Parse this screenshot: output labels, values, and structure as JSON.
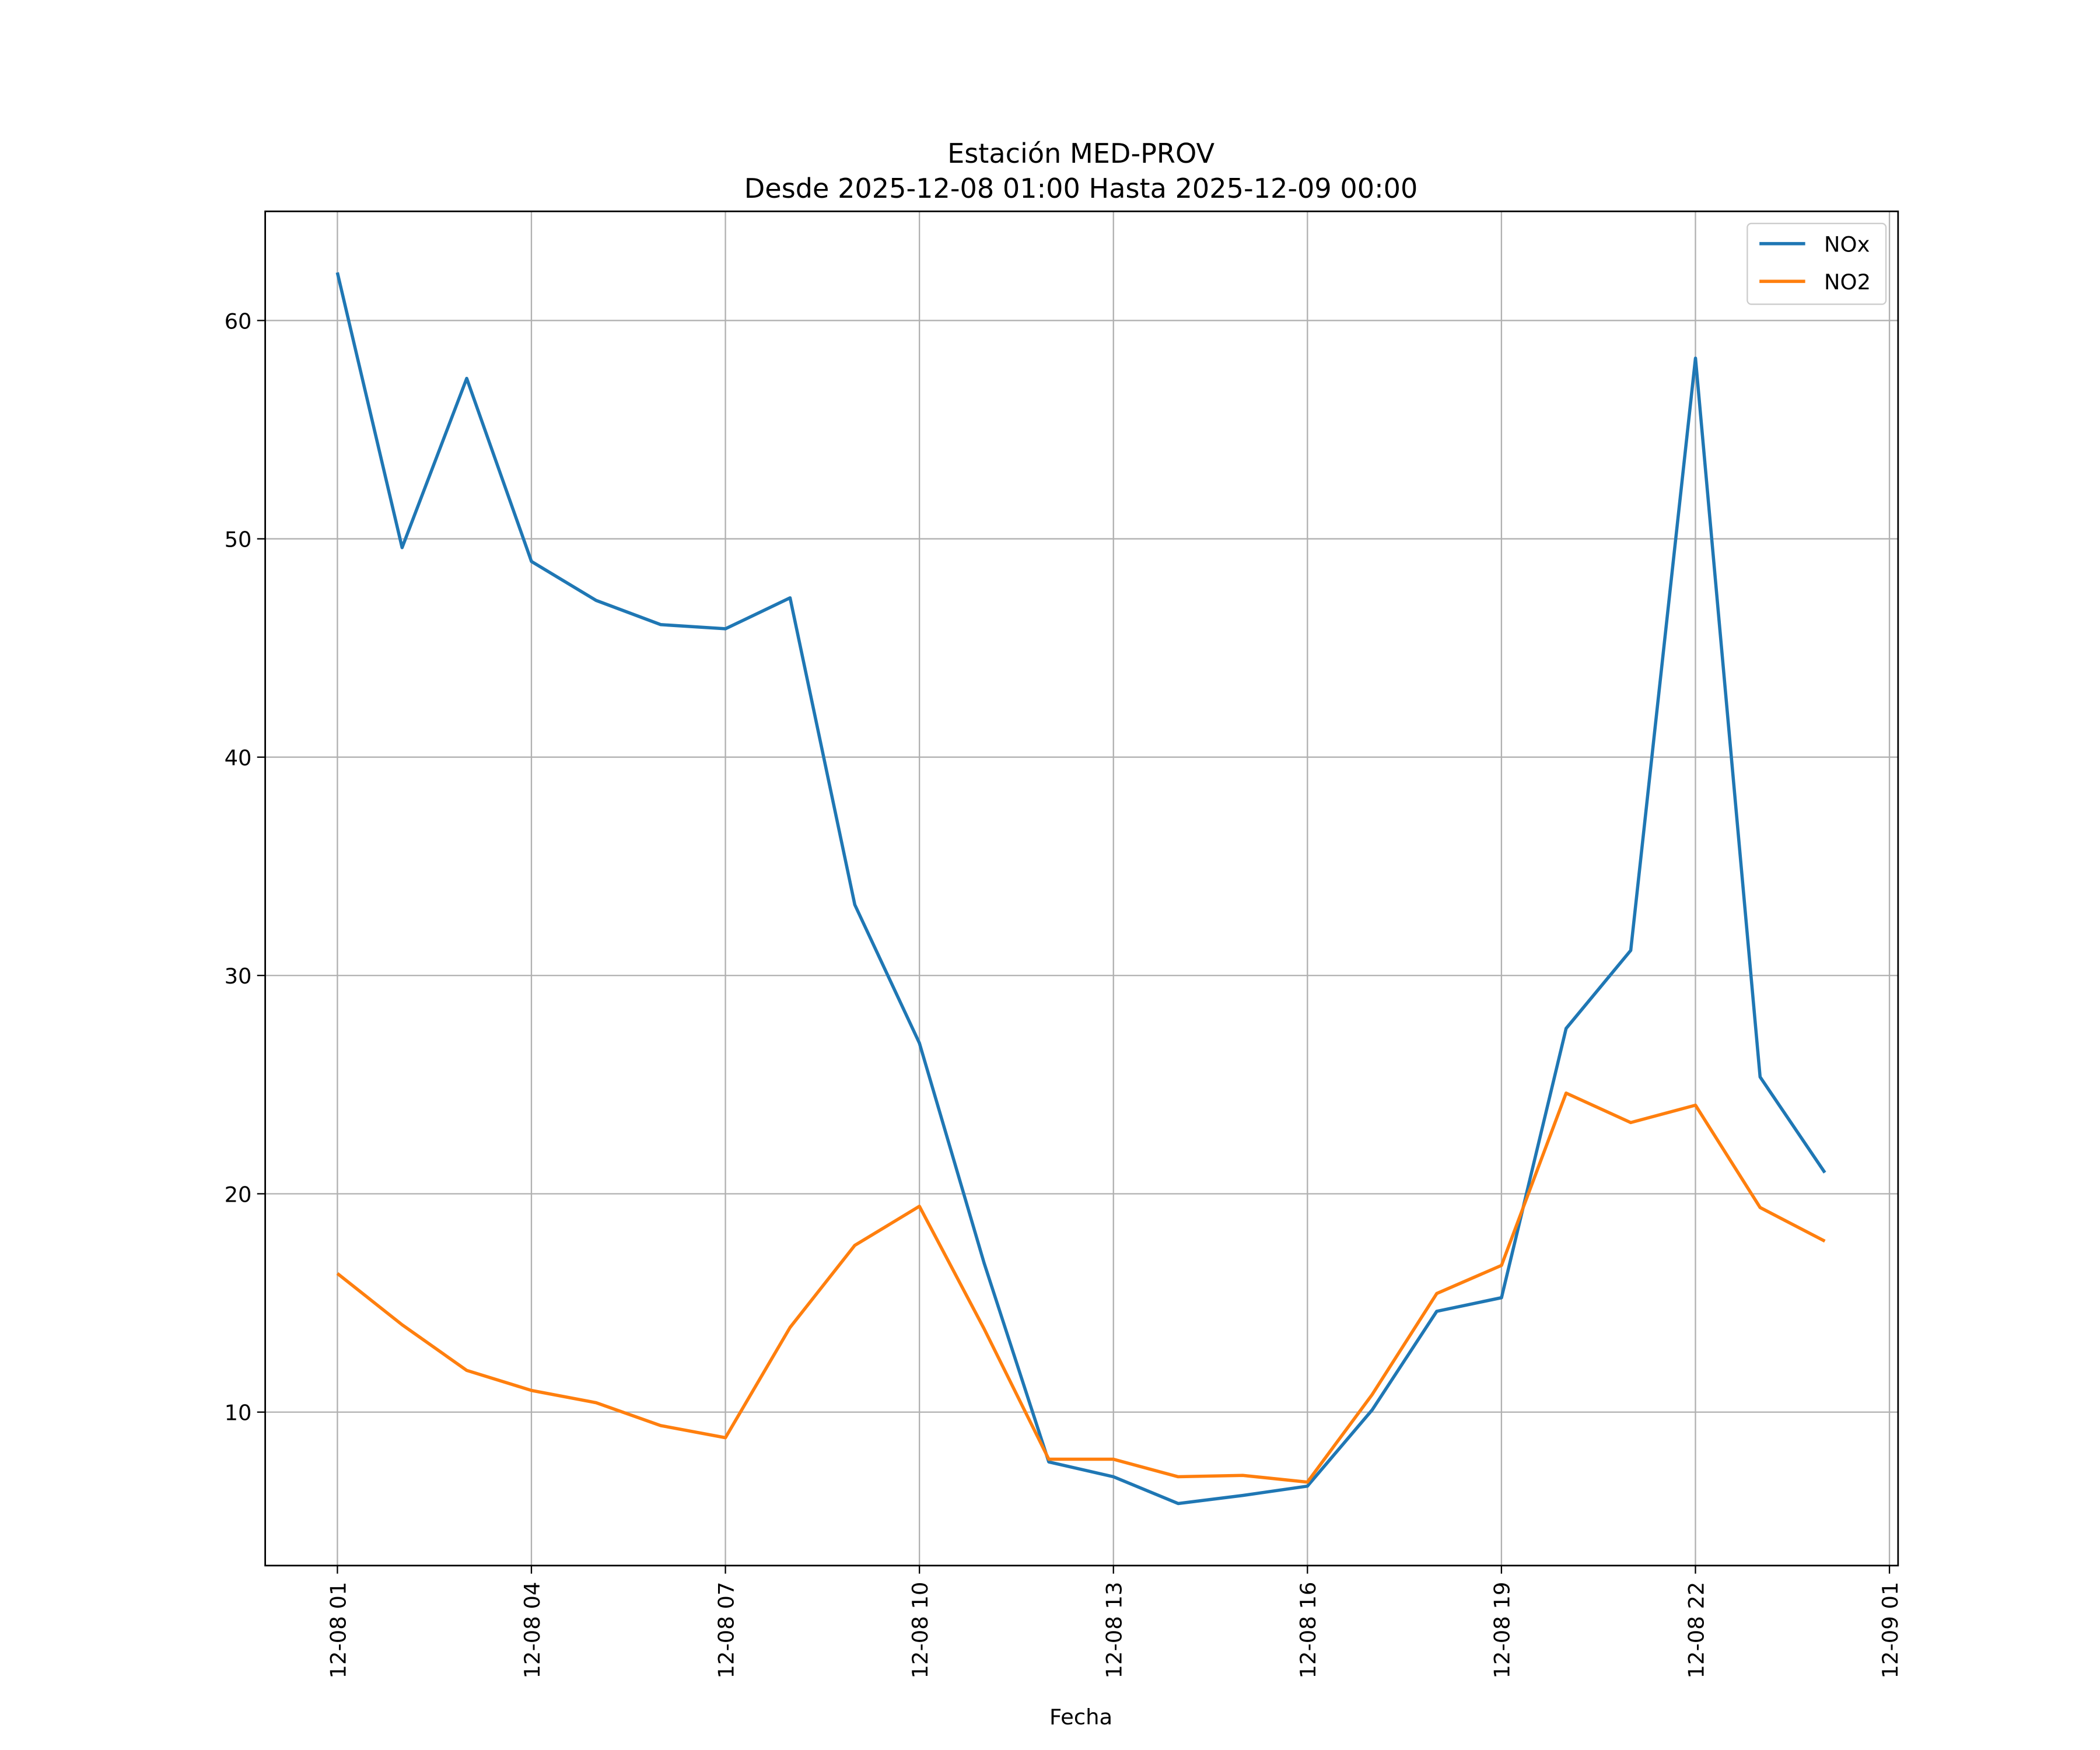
{
  "chart_data": {
    "type": "line",
    "title": "Estación MED-PROV",
    "subtitle": "Desde 2025-12-08 01:00 Hasta 2025-12-09 00:00",
    "xlabel": "Fecha",
    "ylabel": "",
    "x": [
      "2025-12-08 01:00",
      "2025-12-08 02:00",
      "2025-12-08 03:00",
      "2025-12-08 04:00",
      "2025-12-08 05:00",
      "2025-12-08 06:00",
      "2025-12-08 07:00",
      "2025-12-08 08:00",
      "2025-12-08 09:00",
      "2025-12-08 10:00",
      "2025-12-08 11:00",
      "2025-12-08 12:00",
      "2025-12-08 13:00",
      "2025-12-08 14:00",
      "2025-12-08 15:00",
      "2025-12-08 16:00",
      "2025-12-08 17:00",
      "2025-12-08 18:00",
      "2025-12-08 19:00",
      "2025-12-08 20:00",
      "2025-12-08 21:00",
      "2025-12-08 22:00",
      "2025-12-08 23:00",
      "2025-12-09 00:00"
    ],
    "series": [
      {
        "name": "NOx",
        "color": "#1f77b4",
        "values": [
          62.2,
          49.6,
          57.35,
          48.96,
          47.18,
          46.07,
          45.88,
          47.3,
          33.24,
          26.9,
          16.84,
          7.72,
          7.04,
          5.81,
          6.18,
          6.61,
          10.1,
          14.62,
          15.24,
          27.57,
          31.15,
          58.27,
          25.35,
          20.97
        ]
      },
      {
        "name": "NO2",
        "color": "#ff7f0e",
        "values": [
          16.35,
          14.0,
          11.91,
          10.99,
          10.43,
          9.38,
          8.83,
          13.88,
          17.64,
          19.43,
          13.82,
          7.84,
          7.84,
          7.04,
          7.1,
          6.79,
          10.8,
          15.43,
          16.72,
          24.61,
          23.26,
          24.06,
          19.37,
          17.83
        ]
      }
    ],
    "xlim": [
      "2025-12-07 23:53",
      "2025-12-09 01:08"
    ],
    "ylim": [
      2.97,
      65.0
    ],
    "xticks": [
      {
        "at": "2025-12-08 01:00",
        "label": "12-08 01"
      },
      {
        "at": "2025-12-08 04:00",
        "label": "12-08 04"
      },
      {
        "at": "2025-12-08 07:00",
        "label": "12-08 07"
      },
      {
        "at": "2025-12-08 10:00",
        "label": "12-08 10"
      },
      {
        "at": "2025-12-08 13:00",
        "label": "12-08 13"
      },
      {
        "at": "2025-12-08 16:00",
        "label": "12-08 16"
      },
      {
        "at": "2025-12-08 19:00",
        "label": "12-08 19"
      },
      {
        "at": "2025-12-08 22:00",
        "label": "12-08 22"
      },
      {
        "at": "2025-12-09 01:00",
        "label": "12-09 01"
      }
    ],
    "yticks": [
      10,
      20,
      30,
      40,
      50,
      60
    ],
    "grid": true,
    "legend": "top-right"
  }
}
